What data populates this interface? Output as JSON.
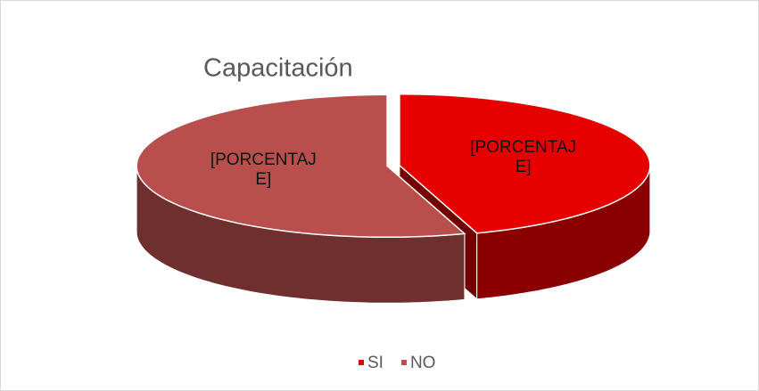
{
  "chart_data": {
    "type": "pie3d",
    "title": "Capacitación",
    "categories": [
      "SI",
      "NO"
    ],
    "values": [
      45,
      55
    ],
    "value_labels": [
      "[PORCENTAJE]",
      "[PORCENTAJE]"
    ],
    "colors": [
      "#e60000",
      "#b84f4d"
    ],
    "legend": "bottom"
  }
}
